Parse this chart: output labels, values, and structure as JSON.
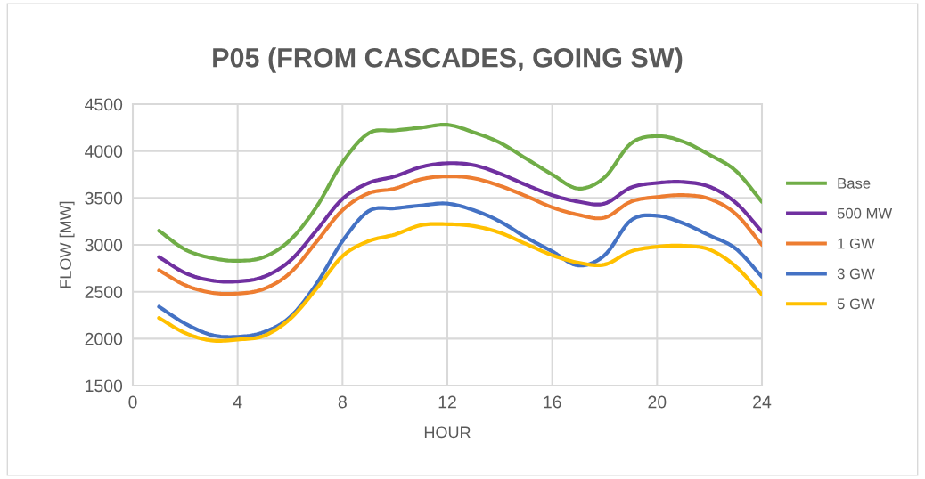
{
  "chart_data": {
    "type": "line",
    "title": "P05 (FROM CASCADES, GOING SW)",
    "xlabel": "HOUR",
    "ylabel": "FLOW [MW]",
    "x": [
      1,
      2,
      3,
      4,
      5,
      6,
      7,
      8,
      9,
      10,
      11,
      12,
      13,
      14,
      15,
      16,
      17,
      18,
      19,
      20,
      21,
      22,
      23,
      24
    ],
    "xlim": [
      0,
      24
    ],
    "xticks": [
      0,
      4,
      8,
      12,
      16,
      20,
      24
    ],
    "ylim": [
      1500,
      4500
    ],
    "yticks": [
      1500,
      2000,
      2500,
      3000,
      3500,
      4000,
      4500
    ],
    "grid": true,
    "legend": "right",
    "marker": "none",
    "line_style": "solid",
    "series": [
      {
        "name": "Base",
        "color": "#70ad47",
        "values": [
          3150,
          2950,
          2860,
          2830,
          2870,
          3050,
          3400,
          3880,
          4190,
          4220,
          4250,
          4280,
          4200,
          4090,
          3920,
          3750,
          3600,
          3720,
          4080,
          4160,
          4100,
          3960,
          3790,
          3460
        ]
      },
      {
        "name": "500 MW",
        "color": "#7030a0",
        "values": [
          2870,
          2700,
          2620,
          2610,
          2660,
          2830,
          3150,
          3490,
          3660,
          3730,
          3830,
          3870,
          3850,
          3760,
          3640,
          3530,
          3460,
          3440,
          3610,
          3660,
          3670,
          3620,
          3450,
          3140
        ]
      },
      {
        "name": "1 GW",
        "color": "#ed7d31",
        "values": [
          2730,
          2570,
          2490,
          2480,
          2530,
          2700,
          3030,
          3370,
          3550,
          3600,
          3700,
          3730,
          3710,
          3630,
          3520,
          3400,
          3320,
          3290,
          3460,
          3510,
          3530,
          3490,
          3330,
          3000
        ]
      },
      {
        "name": "3 GW",
        "color": "#4472c4",
        "values": [
          2340,
          2160,
          2040,
          2020,
          2070,
          2230,
          2580,
          3040,
          3360,
          3390,
          3420,
          3440,
          3370,
          3250,
          3080,
          2930,
          2780,
          2890,
          3260,
          3310,
          3230,
          3100,
          2960,
          2660
        ]
      },
      {
        "name": "5 GW",
        "color": "#ffc000",
        "values": [
          2220,
          2060,
          1980,
          1990,
          2030,
          2210,
          2530,
          2880,
          3040,
          3110,
          3210,
          3220,
          3200,
          3130,
          3010,
          2890,
          2810,
          2790,
          2930,
          2980,
          2990,
          2950,
          2770,
          2470
        ]
      }
    ]
  }
}
